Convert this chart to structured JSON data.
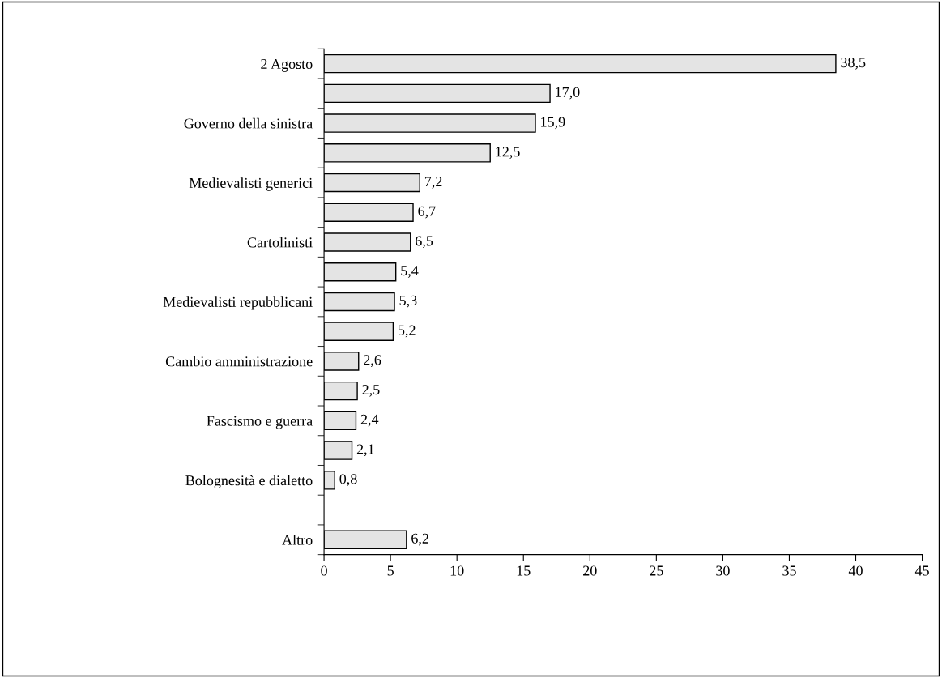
{
  "chart_data": {
    "type": "bar",
    "orientation": "horizontal",
    "categories": [
      "2 Agosto",
      null,
      "Governo della sinistra",
      null,
      "Medievalisti generici",
      null,
      "Cartolinisti",
      null,
      "Medievalisti repubblicani",
      null,
      "Cambio amministrazione",
      null,
      "Fascismo e guerra",
      null,
      "Bolognesità e dialetto",
      null,
      "Altro"
    ],
    "values": [
      38.5,
      17.0,
      15.9,
      12.5,
      7.2,
      6.7,
      6.5,
      5.4,
      5.3,
      5.2,
      2.6,
      2.5,
      2.4,
      2.1,
      0.8,
      null,
      6.2
    ],
    "value_labels": [
      "38,5",
      "17,0",
      "15,9",
      "12,5",
      "7,2",
      "6,7",
      "6,5",
      "5,4",
      "5,3",
      "5,2",
      "2,6",
      "2,5",
      "2,4",
      "2,1",
      "0,8",
      null,
      "6,2"
    ],
    "color": "#e4e4e4",
    "xlim": [
      0,
      45
    ],
    "xticks": [
      0,
      5,
      10,
      15,
      20,
      25,
      30,
      35,
      40,
      45
    ],
    "grid": false,
    "legend": false
  }
}
